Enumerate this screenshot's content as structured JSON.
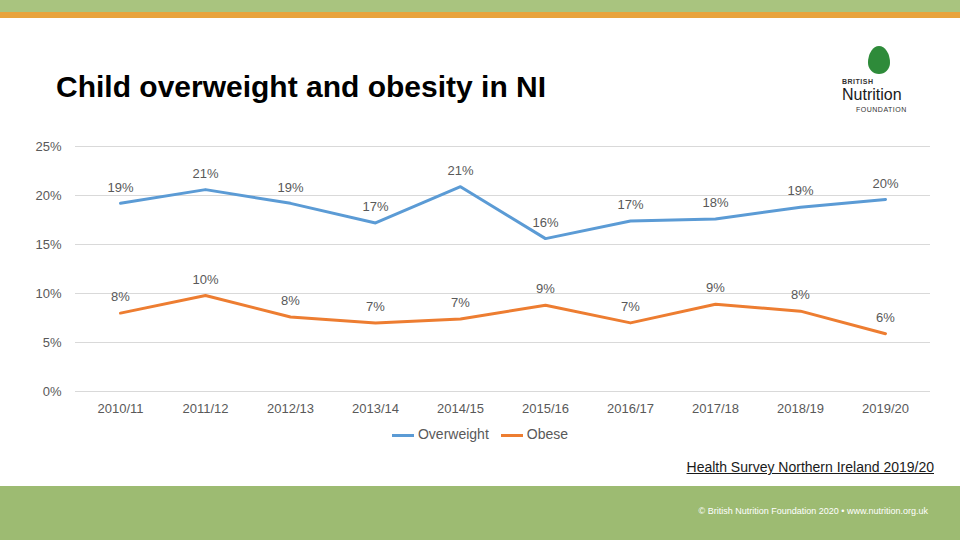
{
  "chart_data": {
    "type": "line",
    "title": "Child overweight and obesity in NI",
    "categories": [
      "2010/11",
      "2011/12",
      "2012/13",
      "2013/14",
      "2014/15",
      "2015/16",
      "2016/17",
      "2017/18",
      "2018/19",
      "2019/20"
    ],
    "series": [
      {
        "name": "Overweight",
        "color": "#5b9bd5",
        "values": [
          19.2,
          20.6,
          19.2,
          17.2,
          20.9,
          15.6,
          17.4,
          17.6,
          18.8,
          19.6
        ],
        "value_labels": [
          "19%",
          "21%",
          "19%",
          "17%",
          "21%",
          "16%",
          "17%",
          "18%",
          "19%",
          "20%"
        ]
      },
      {
        "name": "Obese",
        "color": "#ed7d31",
        "values": [
          8.0,
          9.8,
          7.6,
          7.0,
          7.4,
          8.8,
          7.0,
          8.9,
          8.2,
          5.9
        ],
        "value_labels": [
          "8%",
          "10%",
          "8%",
          "7%",
          "7%",
          "9%",
          "7%",
          "9%",
          "8%",
          "6%"
        ]
      }
    ],
    "ylim": [
      0,
      25
    ],
    "yticks": [
      {
        "value": 0,
        "label": "0%"
      },
      {
        "value": 5,
        "label": "5%"
      },
      {
        "value": 10,
        "label": "10%"
      },
      {
        "value": 15,
        "label": "15%"
      },
      {
        "value": 20,
        "label": "20%"
      },
      {
        "value": 25,
        "label": "25%"
      }
    ],
    "grid": true,
    "legend": "bottom",
    "data_labels": true,
    "source": "Health Survey Northern Ireland 2019/20",
    "logo": [
      "BRITISH",
      "Nutrition",
      "FOUNDATION"
    ],
    "footer": "© British Nutrition Foundation 2020 • www.nutrition.org.uk"
  }
}
